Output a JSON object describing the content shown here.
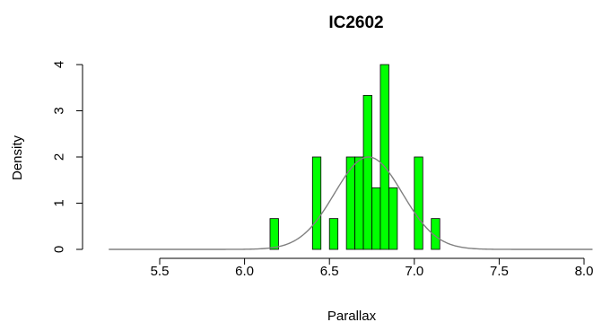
{
  "chart_data": {
    "type": "bar",
    "title": "IC2602",
    "xlabel": "Parallax",
    "ylabel": "Density",
    "xlim": [
      5.2,
      8.05
    ],
    "ylim": [
      0,
      4
    ],
    "x_ticks": [
      "5.5",
      "6.0",
      "6.5",
      "7.0",
      "7.5",
      "8.0"
    ],
    "y_ticks": [
      "0",
      "1",
      "2",
      "3",
      "4"
    ],
    "bar_color": "#00ff00",
    "curve_color": "#808080",
    "bin_width": 0.05,
    "bins": [
      {
        "x0": 6.15,
        "x1": 6.2,
        "density": 0.667
      },
      {
        "x0": 6.4,
        "x1": 6.45,
        "density": 2.0
      },
      {
        "x0": 6.5,
        "x1": 6.55,
        "density": 0.667
      },
      {
        "x0": 6.6,
        "x1": 6.65,
        "density": 2.0
      },
      {
        "x0": 6.65,
        "x1": 6.7,
        "density": 2.0
      },
      {
        "x0": 6.7,
        "x1": 6.75,
        "density": 3.333
      },
      {
        "x0": 6.75,
        "x1": 6.8,
        "density": 1.333
      },
      {
        "x0": 6.8,
        "x1": 6.85,
        "density": 4.0
      },
      {
        "x0": 6.85,
        "x1": 6.9,
        "density": 1.333
      },
      {
        "x0": 7.0,
        "x1": 7.05,
        "density": 2.0
      },
      {
        "x0": 7.1,
        "x1": 7.15,
        "density": 0.667
      }
    ],
    "normal_curve": {
      "mean": 6.73,
      "sd": 0.2,
      "peak": 2.0
    }
  }
}
